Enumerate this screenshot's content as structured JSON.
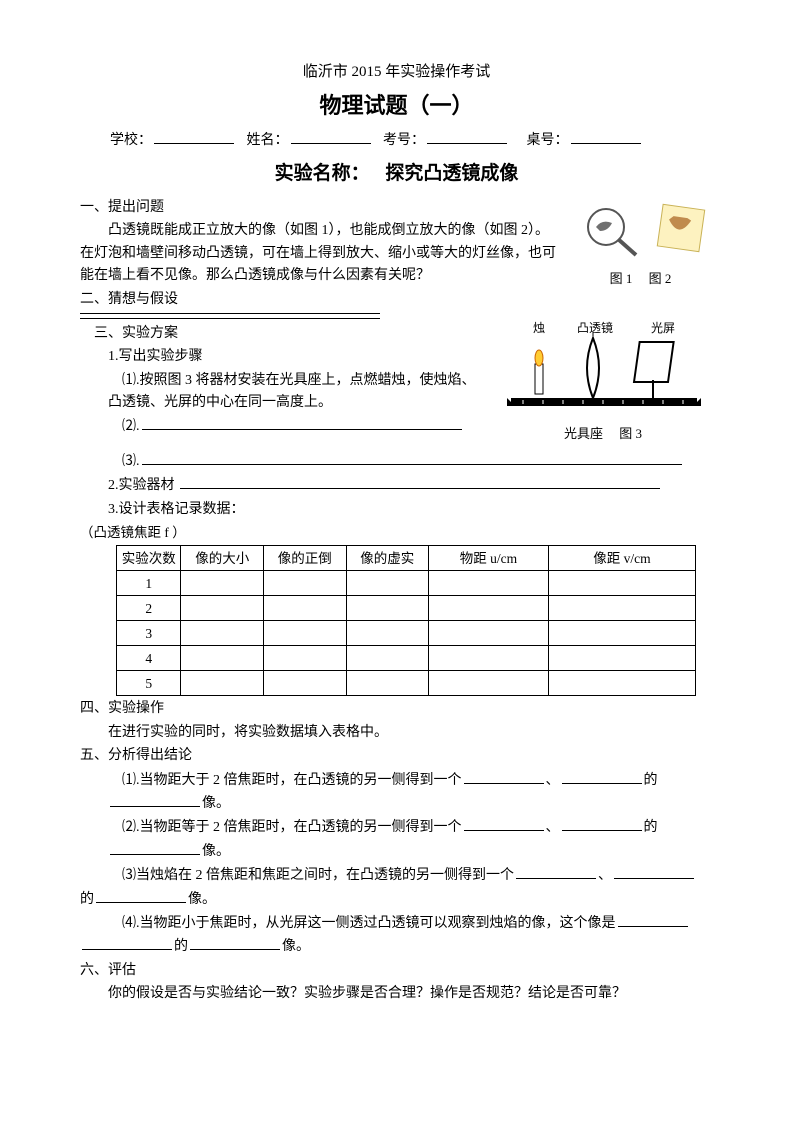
{
  "header": {
    "line1": "临沂市 2015 年实验操作考试",
    "line2": "物理试题（一）",
    "school_label": "学校：",
    "name_label": "姓名：",
    "id_label": "考号：",
    "desk_label": "桌号：",
    "exp_name_label": "实验名称：",
    "exp_name": "探究凸透镜成像"
  },
  "s1": {
    "title": "一、提出问题",
    "p1": "凸透镜既能成正立放大的像（如图 1），也能成倒立放大的像（如图 2）。在灯泡和墙壁间移动凸透镜，可在墙上得到放大、缩小或等大的灯丝像，也可能在墙上看不见像。那么凸透镜成像与什么因素有关呢？",
    "fig1": "图 1",
    "fig2": "图 2"
  },
  "s2": {
    "title": "二、猜想与假设"
  },
  "s3": {
    "title": "三、实验方案",
    "step_title": "1.写出实验步骤",
    "step1": "⑴.按照图 3 将器材安装在光具座上，点燃蜡烛，使烛焰、凸透镜、光屏的中心在同一高度上。",
    "step2_prefix": "⑵.",
    "step3_prefix": "⑶.",
    "apparatus_title": "2.实验器材",
    "table_title": "3.设计表格记录数据：",
    "focal_label": "（凸透镜焦距 f       ）",
    "diagram_labels": {
      "candle": "烛",
      "lens": "凸透镜",
      "screen": "光屏",
      "bench": "光具座",
      "fig": "图 3"
    }
  },
  "table": {
    "columns": [
      "实验次数",
      "像的大小",
      "像的正倒",
      "像的虚实",
      "物距 u/cm",
      "像距 v/cm"
    ],
    "col_widths": [
      "60px",
      "80px",
      "80px",
      "80px",
      "120px",
      "150px"
    ],
    "rows": [
      [
        "1",
        "",
        "",
        "",
        "",
        ""
      ],
      [
        "2",
        "",
        "",
        "",
        "",
        ""
      ],
      [
        "3",
        "",
        "",
        "",
        "",
        ""
      ],
      [
        "4",
        "",
        "",
        "",
        "",
        ""
      ],
      [
        "5",
        "",
        "",
        "",
        "",
        ""
      ]
    ],
    "border_color": "#000000",
    "background_color": "#ffffff"
  },
  "s4": {
    "title": "四、实验操作",
    "p1": "在进行实验的同时，将实验数据填入表格中。"
  },
  "s5": {
    "title": "五、分析得出结论",
    "c1a": "⑴.当物距大于 2 倍焦距时，在凸透镜的另一侧得到一个",
    "c1b": "的",
    "c1c": "像。",
    "c2a": "⑵.当物距等于 2 倍焦距时，在凸透镜的另一侧得到一个",
    "c2b": "的",
    "c2c": "像。",
    "c3a": "⑶当烛焰在 2 倍焦距和焦距之间时，在凸透镜的另一侧得到一个",
    "c3b": "的",
    "c3c": "像。",
    "c4a": "⑷.当物距小于焦距时，从光屏这一侧透过凸透镜可以观察到烛焰的像，这个像是",
    "c4b": "的",
    "c4c": "像。"
  },
  "s6": {
    "title": "六、评估",
    "p1": "你的假设是否与实验结论一致？实验步骤是否合理？操作是否规范？结论是否可靠？"
  }
}
